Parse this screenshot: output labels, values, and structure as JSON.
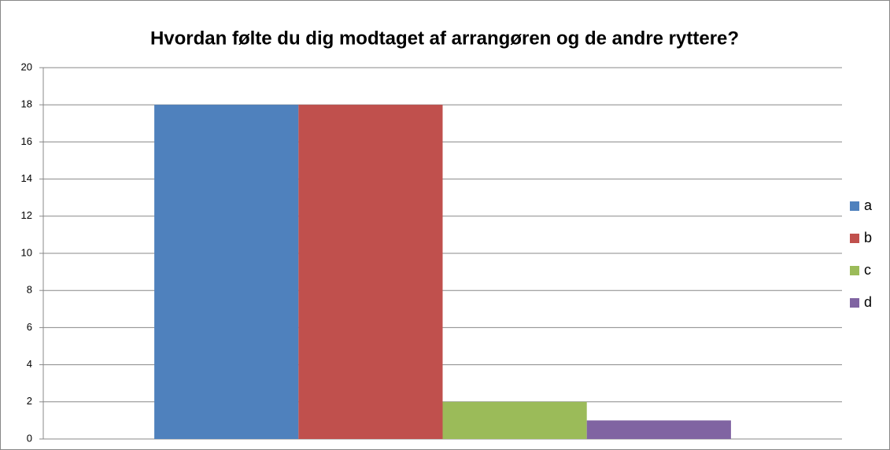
{
  "chart_data": {
    "type": "bar",
    "title": "Hvordan følte du dig modtaget af arrangøren og de andre ryttere?",
    "categories": [
      null
    ],
    "series": [
      {
        "name": "a",
        "color": "#4f81bd",
        "values": [
          18
        ]
      },
      {
        "name": "b",
        "color": "#c0504d",
        "values": [
          18
        ]
      },
      {
        "name": "c",
        "color": "#9bbb59",
        "values": [
          2
        ]
      },
      {
        "name": "d",
        "color": "#8064a2",
        "values": [
          1
        ]
      }
    ],
    "ylim": [
      0,
      20
    ],
    "yticks": [
      0,
      2,
      4,
      6,
      8,
      10,
      12,
      14,
      16,
      18,
      20
    ],
    "grid": true,
    "legend": "right"
  }
}
